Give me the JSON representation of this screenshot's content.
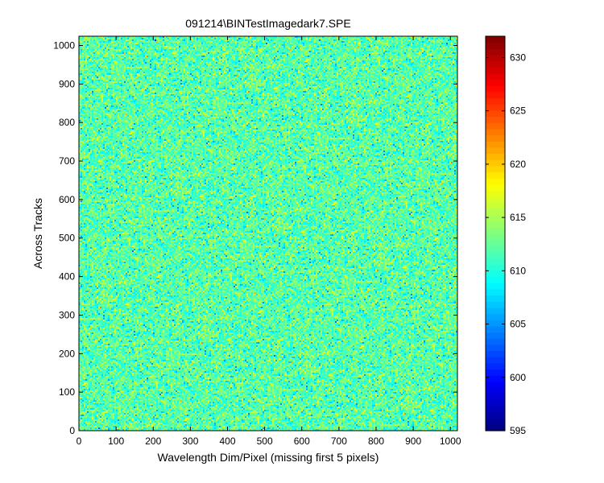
{
  "chart_data": {
    "type": "heatmap",
    "title": "091214\\BINTestImagedark7.SPE",
    "xlabel": "Wavelength Dim/Pixel (missing first 5 pixels)",
    "ylabel": "Across Tracks",
    "xlim": [
      0,
      1019
    ],
    "ylim": [
      0,
      1024
    ],
    "x_ticks": [
      0,
      100,
      200,
      300,
      400,
      500,
      600,
      700,
      800,
      900,
      1000
    ],
    "y_ticks": [
      0,
      100,
      200,
      300,
      400,
      500,
      600,
      700,
      800,
      900,
      1000
    ],
    "colorbar": {
      "colormap": "jet",
      "clim": [
        595,
        632
      ],
      "ticks": [
        595,
        600,
        605,
        610,
        615,
        620,
        625,
        630
      ]
    },
    "value_distribution": {
      "description": "dark frame noise, roughly uniform across sensor",
      "mean": 612,
      "std": 2.5,
      "min": 598,
      "max": 625
    },
    "grid": false,
    "colorbar_placement": "right"
  }
}
